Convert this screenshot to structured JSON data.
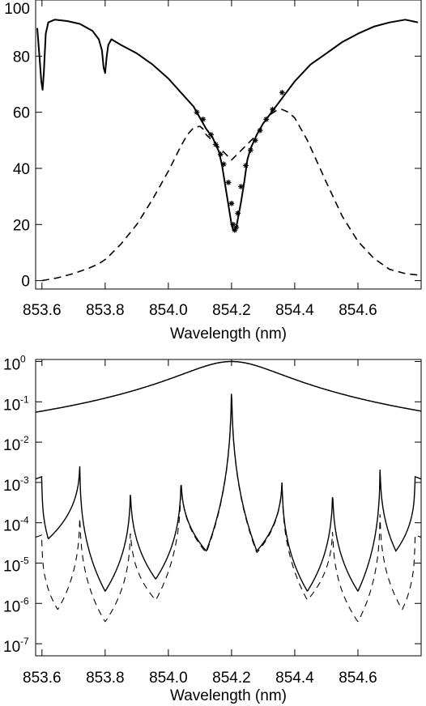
{
  "chart_data": [
    {
      "type": "line",
      "title": "",
      "xlabel": "Wavelength (nm)",
      "ylabel": "",
      "xlim": [
        853.58,
        854.8
      ],
      "ylim": [
        -3,
        100
      ],
      "grid": false,
      "legend": "none",
      "xticks": [
        853.6,
        853.8,
        854.0,
        854.2,
        854.4,
        854.6
      ],
      "xtick_labels": [
        "853.6",
        "853.8",
        "854.0",
        "854.2",
        "854.4",
        "854.6"
      ],
      "yticks": [
        0,
        20,
        40,
        60,
        80,
        100
      ],
      "ytick_labels": [
        "0",
        "20",
        "40",
        "60",
        "80",
        "100"
      ],
      "series": [
        {
          "style": "solid",
          "x": [
            853.585,
            853.592,
            853.598,
            853.602,
            853.606,
            853.612,
            853.62,
            853.64,
            853.68,
            853.72,
            853.76,
            853.78,
            853.79,
            853.795,
            853.8,
            853.805,
            853.81,
            853.82,
            853.85,
            853.9,
            853.95,
            854.0,
            854.04,
            854.08,
            854.1,
            854.12,
            854.14,
            854.16,
            854.17,
            854.18,
            854.19,
            854.2,
            854.205,
            854.21,
            854.215,
            854.22,
            854.23,
            854.24,
            854.25,
            854.26,
            854.28,
            854.3,
            854.32,
            854.34,
            854.36,
            854.4,
            854.45,
            854.5,
            854.55,
            854.6,
            854.65,
            854.7,
            854.75,
            854.79
          ],
          "y": [
            90,
            80,
            71,
            68,
            74,
            88,
            92,
            93,
            92.5,
            91.5,
            89,
            86,
            82,
            76,
            74,
            80,
            84,
            86,
            84,
            81,
            77,
            72,
            67,
            62,
            58,
            54,
            51,
            46,
            41,
            34,
            27,
            20,
            18,
            18,
            19,
            22,
            28,
            35,
            43,
            47,
            52,
            56,
            59,
            62,
            65,
            71,
            77,
            81,
            85,
            88,
            90.5,
            92,
            93,
            92
          ]
        },
        {
          "style": "dashed",
          "x": [
            853.6,
            853.65,
            853.7,
            853.75,
            853.78,
            853.8,
            853.81,
            853.85,
            853.9,
            853.95,
            854.0,
            854.04,
            854.06,
            854.08,
            854.1,
            854.11,
            854.12,
            854.2,
            854.28,
            854.3,
            854.32,
            854.34,
            854.36,
            854.38,
            854.4,
            854.44,
            854.5,
            854.55,
            854.6,
            854.65,
            854.7,
            854.75,
            854.79
          ],
          "y": [
            0,
            1,
            2.5,
            4.5,
            6,
            7.5,
            8.5,
            13,
            20,
            29,
            39,
            48,
            52,
            54.5,
            55,
            54,
            52,
            43,
            52,
            56,
            59,
            60.5,
            61,
            60,
            58,
            50,
            35,
            23,
            14,
            8,
            4,
            2.5,
            2
          ]
        }
      ],
      "markers": {
        "symbol": "asterisk",
        "x": [
          854.09,
          854.11,
          854.135,
          854.15,
          854.165,
          854.175,
          854.19,
          854.2,
          854.205,
          854.21,
          854.215,
          854.22,
          854.23,
          854.245,
          854.26,
          854.275,
          854.29,
          854.31,
          854.33,
          854.36
        ],
        "y": [
          60,
          57.5,
          52,
          48.5,
          45,
          41.5,
          35,
          27.5,
          20,
          18,
          19,
          24,
          33.5,
          41,
          46.5,
          50,
          53.5,
          57.5,
          61,
          67
        ]
      }
    },
    {
      "type": "line",
      "title": "",
      "xlabel": "Wavelength (nm)",
      "ylabel": "",
      "xscale": "linear",
      "yscale": "log",
      "xlim": [
        853.58,
        854.8
      ],
      "ylim_exponent": [
        -7.3,
        0.05
      ],
      "grid": false,
      "legend": "none",
      "xticks": [
        853.6,
        853.8,
        854.0,
        854.2,
        854.4,
        854.6
      ],
      "xtick_labels": [
        "853.6",
        "853.8",
        "854.0",
        "854.2",
        "854.4",
        "854.6"
      ],
      "ytick_labels": [
        {
          "base": "10",
          "exp": "0"
        },
        {
          "base": "10",
          "exp": "-1"
        },
        {
          "base": "10",
          "exp": "-2"
        },
        {
          "base": "10",
          "exp": "-3"
        },
        {
          "base": "10",
          "exp": "-4"
        },
        {
          "base": "10",
          "exp": "-5"
        },
        {
          "base": "10",
          "exp": "-6"
        },
        {
          "base": "10",
          "exp": "-7"
        }
      ],
      "series": [
        {
          "style": "solid",
          "kind": "prefilter",
          "center": 854.2,
          "fwhm": 0.3,
          "x": [
            853.58,
            853.7,
            853.8,
            853.9,
            854.0,
            854.05,
            854.1,
            854.15,
            854.2,
            854.25,
            854.3,
            854.35,
            854.4,
            854.5,
            854.6,
            854.7,
            854.8
          ],
          "y": [
            0.02,
            0.04,
            0.075,
            0.15,
            0.35,
            0.55,
            0.8,
            0.97,
            1.0,
            0.97,
            0.8,
            0.55,
            0.35,
            0.15,
            0.075,
            0.04,
            0.02
          ]
        },
        {
          "style": "solid",
          "kind": "transmission",
          "peaks_x": [
            853.6,
            853.72,
            853.88,
            854.04,
            854.2,
            854.36,
            854.52,
            854.67,
            854.78
          ],
          "peaks_y": [
            0.0014,
            0.005,
            0.0014,
            0.0023,
            1.0,
            0.0023,
            0.0014,
            0.005,
            0.0014
          ],
          "minima_x": [
            853.62,
            853.8,
            853.96,
            854.12,
            854.28,
            854.44,
            854.6,
            854.72
          ],
          "minima_y": [
            4e-05,
            2e-06,
            4e-06,
            2e-05,
            2e-05,
            2e-06,
            2e-06,
            2e-05
          ]
        },
        {
          "style": "dashed",
          "kind": "transmission-prefiltered",
          "peaks_x": [
            853.6,
            853.72,
            853.88,
            854.04,
            854.2,
            854.36,
            854.52,
            854.67,
            854.78
          ],
          "peaks_y": [
            5e-05,
            0.00035,
            0.00014,
            0.0023,
            1.0,
            0.0023,
            0.00014,
            0.00035,
            5e-05
          ],
          "minima_x": [
            853.65,
            853.8,
            853.96,
            854.12,
            854.28,
            854.44,
            854.6,
            854.74
          ],
          "minima_y": [
            7e-07,
            3.5e-07,
            1.2e-06,
            1.8e-05,
            1.8e-05,
            1.2e-06,
            3.5e-07,
            7e-07
          ]
        }
      ]
    }
  ]
}
